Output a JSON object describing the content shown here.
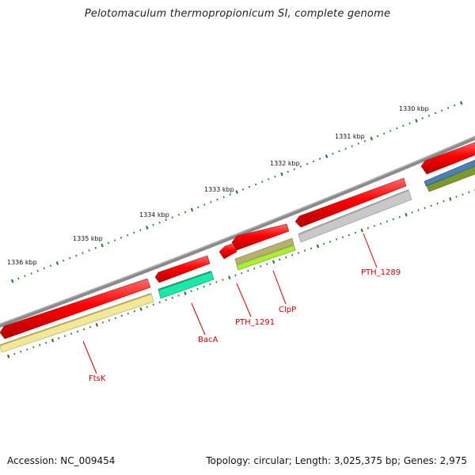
{
  "title": "Pelotomaculum thermopropionicum SI, complete genome",
  "scale_labels": [
    "1330 kbp",
    "1331 kbp",
    "1332 kbp",
    "1333 kbp",
    "1334 kbp",
    "1335 kbp",
    "1336 kbp"
  ],
  "gene_labels": [
    "PTH_1289",
    "ClpP",
    "PTH_1291",
    "BacA",
    "FtsK"
  ],
  "footer": {
    "accession": "Accession: NC_009454",
    "summary": "Topology: circular; Length: 3,025,375 bp; Genes: 2,975"
  },
  "colors": {
    "backbone": "#7a7a7a",
    "cds": "#ff0000",
    "tick": "#1a7a1a",
    "label": "#cc0000",
    "cog_ftsk": "#f3e898",
    "cog_baca": "#1de8a8",
    "cog_clpp_top": "#b8b070",
    "cog_clpp_bottom": "#a8f030",
    "cog_pth1289": "#c8c8c8",
    "cog_right_blue": "#4a7fb8",
    "cog_right_olive": "#7a9a30"
  }
}
